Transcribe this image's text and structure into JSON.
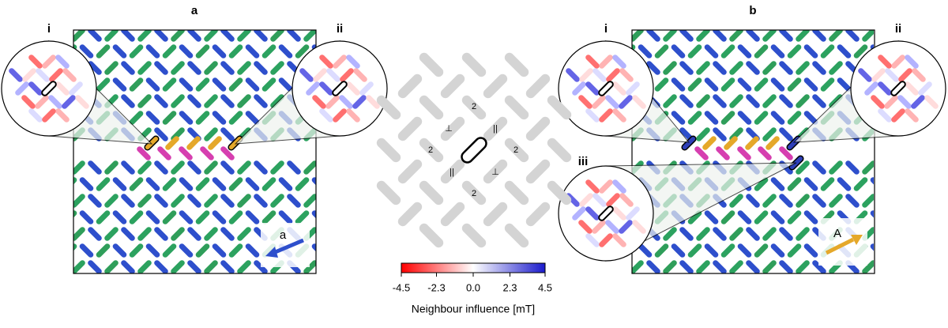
{
  "panels": [
    {
      "label": "a",
      "magnifiers": [
        "i",
        "ii"
      ],
      "field_label": "a"
    },
    {
      "label": "b",
      "magnifiers": [
        "i",
        "ii",
        "iii"
      ],
      "field_label": "A"
    }
  ],
  "neighbour_map": {
    "labels": [
      "2",
      "⊥",
      "||",
      "2",
      "2",
      "||",
      "⊥",
      "2"
    ]
  },
  "colorbar": {
    "title": "Neighbour influence [mT]",
    "lim": [
      -4.5,
      4.5
    ],
    "ticks": [
      -4.5,
      -2.3,
      {
        "value": 0,
        "label": "0.0"
      },
      2.3,
      4.5
    ]
  }
}
